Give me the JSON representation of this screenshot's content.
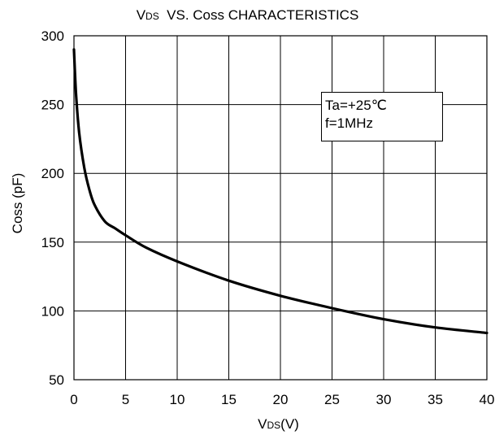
{
  "chart_data": {
    "type": "line",
    "title_main": "V",
    "title_sub": "DS",
    "title_rest": "  VS. Coss CHARACTERISTICS",
    "xlabel_main": "V",
    "xlabel_sub": "DS",
    "xlabel_rest": "(V)",
    "ylabel": "Coss (pF)",
    "xlim": [
      0,
      40
    ],
    "ylim": [
      50,
      300
    ],
    "x_ticks": [
      "0",
      "5",
      "10",
      "15",
      "20",
      "25",
      "30",
      "35",
      "40"
    ],
    "y_ticks": [
      "50",
      "100",
      "150",
      "200",
      "250",
      "300"
    ],
    "grid": true,
    "legend": {
      "placement": "top-right",
      "lines": [
        "Ta=+25℃",
        "f=1MHz"
      ]
    },
    "series": [
      {
        "x": [
          0,
          0.2,
          0.5,
          1,
          1.5,
          2,
          3,
          4,
          5,
          7,
          10,
          15,
          20,
          25,
          30,
          35,
          40
        ],
        "y": [
          290,
          258,
          230,
          204,
          188,
          177,
          165,
          160,
          155,
          146,
          136,
          122,
          111,
          102,
          94,
          88,
          84
        ]
      }
    ]
  }
}
